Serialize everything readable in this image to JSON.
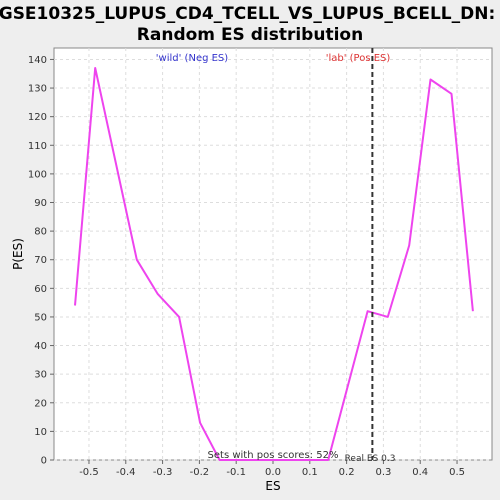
{
  "chart_data": {
    "type": "line",
    "title_line1": "GSE10325_LUPUS_CD4_TCELL_VS_LUPUS_BCELL_DN:",
    "title_line2": "Random ES distribution",
    "xlabel": "ES",
    "ylabel": "P(ES)",
    "xlim": [
      -0.595,
      0.595
    ],
    "ylim": [
      0,
      144
    ],
    "xticks": [
      -0.5,
      -0.4,
      -0.3,
      -0.2,
      -0.1,
      0.0,
      0.1,
      0.2,
      0.3,
      0.4,
      0.5
    ],
    "xtick_labels": [
      "-0.5",
      "-0.4",
      "-0.3",
      "-0.2",
      "-0.1",
      "0.0",
      "0.1",
      "0.2",
      "0.3",
      "0.4",
      "0.5"
    ],
    "yticks": [
      0,
      10,
      20,
      30,
      40,
      50,
      60,
      70,
      80,
      90,
      100,
      110,
      120,
      130,
      140
    ],
    "ytick_labels": [
      "0",
      "10",
      "20",
      "30",
      "40",
      "50",
      "60",
      "70",
      "80",
      "90",
      "100",
      "110",
      "120",
      "130",
      "140"
    ],
    "grid": true,
    "series": [
      {
        "color": "#ee44ee",
        "x": [
          -0.538,
          -0.483,
          -0.37,
          -0.313,
          -0.255,
          -0.198,
          -0.145,
          0.15,
          0.257,
          0.312,
          0.37,
          0.428,
          0.485,
          0.543
        ],
        "y": [
          54,
          137,
          70,
          58,
          50,
          13,
          0,
          0,
          52,
          50,
          75,
          133,
          128,
          52
        ]
      }
    ],
    "real_es": 0.27,
    "real_es_label": "Real ES 0.3",
    "annotations": {
      "neg_label": "'wild' (Neg ES)",
      "neg_color": "#3333cc",
      "pos_label": "'lab' (Pos ES)",
      "pos_color": "#dd3333",
      "pos_scores_text": "Sets with pos scores: 52%"
    }
  }
}
